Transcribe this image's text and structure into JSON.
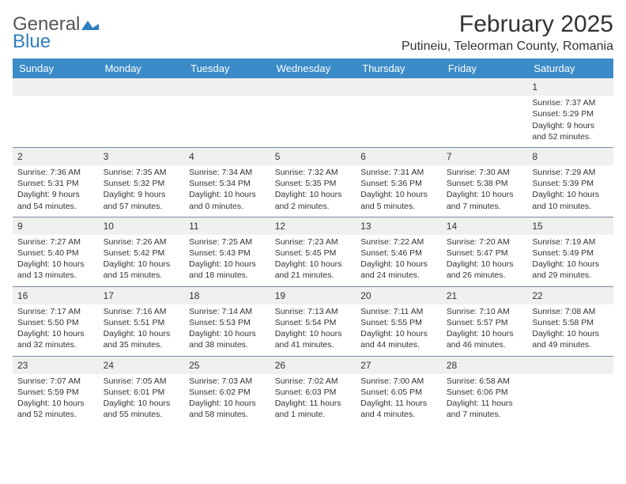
{
  "logo": {
    "word1": "General",
    "word2": "Blue",
    "mark_color": "#2f7fbf"
  },
  "title": "February 2025",
  "location": "Putineiu, Teleorman County, Romania",
  "colors": {
    "header_bg": "#3b8bc9",
    "header_text": "#ffffff",
    "row_divider": "#7a8aa0",
    "shade_bg": "#f0f0f0",
    "text": "#333333"
  },
  "weekdays": [
    "Sunday",
    "Monday",
    "Tuesday",
    "Wednesday",
    "Thursday",
    "Friday",
    "Saturday"
  ],
  "weeks": [
    [
      null,
      null,
      null,
      null,
      null,
      null,
      {
        "n": "1",
        "sr": "Sunrise: 7:37 AM",
        "ss": "Sunset: 5:29 PM",
        "d1": "Daylight: 9 hours",
        "d2": "and 52 minutes."
      }
    ],
    [
      {
        "n": "2",
        "sr": "Sunrise: 7:36 AM",
        "ss": "Sunset: 5:31 PM",
        "d1": "Daylight: 9 hours",
        "d2": "and 54 minutes."
      },
      {
        "n": "3",
        "sr": "Sunrise: 7:35 AM",
        "ss": "Sunset: 5:32 PM",
        "d1": "Daylight: 9 hours",
        "d2": "and 57 minutes."
      },
      {
        "n": "4",
        "sr": "Sunrise: 7:34 AM",
        "ss": "Sunset: 5:34 PM",
        "d1": "Daylight: 10 hours",
        "d2": "and 0 minutes."
      },
      {
        "n": "5",
        "sr": "Sunrise: 7:32 AM",
        "ss": "Sunset: 5:35 PM",
        "d1": "Daylight: 10 hours",
        "d2": "and 2 minutes."
      },
      {
        "n": "6",
        "sr": "Sunrise: 7:31 AM",
        "ss": "Sunset: 5:36 PM",
        "d1": "Daylight: 10 hours",
        "d2": "and 5 minutes."
      },
      {
        "n": "7",
        "sr": "Sunrise: 7:30 AM",
        "ss": "Sunset: 5:38 PM",
        "d1": "Daylight: 10 hours",
        "d2": "and 7 minutes."
      },
      {
        "n": "8",
        "sr": "Sunrise: 7:29 AM",
        "ss": "Sunset: 5:39 PM",
        "d1": "Daylight: 10 hours",
        "d2": "and 10 minutes."
      }
    ],
    [
      {
        "n": "9",
        "sr": "Sunrise: 7:27 AM",
        "ss": "Sunset: 5:40 PM",
        "d1": "Daylight: 10 hours",
        "d2": "and 13 minutes."
      },
      {
        "n": "10",
        "sr": "Sunrise: 7:26 AM",
        "ss": "Sunset: 5:42 PM",
        "d1": "Daylight: 10 hours",
        "d2": "and 15 minutes."
      },
      {
        "n": "11",
        "sr": "Sunrise: 7:25 AM",
        "ss": "Sunset: 5:43 PM",
        "d1": "Daylight: 10 hours",
        "d2": "and 18 minutes."
      },
      {
        "n": "12",
        "sr": "Sunrise: 7:23 AM",
        "ss": "Sunset: 5:45 PM",
        "d1": "Daylight: 10 hours",
        "d2": "and 21 minutes."
      },
      {
        "n": "13",
        "sr": "Sunrise: 7:22 AM",
        "ss": "Sunset: 5:46 PM",
        "d1": "Daylight: 10 hours",
        "d2": "and 24 minutes."
      },
      {
        "n": "14",
        "sr": "Sunrise: 7:20 AM",
        "ss": "Sunset: 5:47 PM",
        "d1": "Daylight: 10 hours",
        "d2": "and 26 minutes."
      },
      {
        "n": "15",
        "sr": "Sunrise: 7:19 AM",
        "ss": "Sunset: 5:49 PM",
        "d1": "Daylight: 10 hours",
        "d2": "and 29 minutes."
      }
    ],
    [
      {
        "n": "16",
        "sr": "Sunrise: 7:17 AM",
        "ss": "Sunset: 5:50 PM",
        "d1": "Daylight: 10 hours",
        "d2": "and 32 minutes."
      },
      {
        "n": "17",
        "sr": "Sunrise: 7:16 AM",
        "ss": "Sunset: 5:51 PM",
        "d1": "Daylight: 10 hours",
        "d2": "and 35 minutes."
      },
      {
        "n": "18",
        "sr": "Sunrise: 7:14 AM",
        "ss": "Sunset: 5:53 PM",
        "d1": "Daylight: 10 hours",
        "d2": "and 38 minutes."
      },
      {
        "n": "19",
        "sr": "Sunrise: 7:13 AM",
        "ss": "Sunset: 5:54 PM",
        "d1": "Daylight: 10 hours",
        "d2": "and 41 minutes."
      },
      {
        "n": "20",
        "sr": "Sunrise: 7:11 AM",
        "ss": "Sunset: 5:55 PM",
        "d1": "Daylight: 10 hours",
        "d2": "and 44 minutes."
      },
      {
        "n": "21",
        "sr": "Sunrise: 7:10 AM",
        "ss": "Sunset: 5:57 PM",
        "d1": "Daylight: 10 hours",
        "d2": "and 46 minutes."
      },
      {
        "n": "22",
        "sr": "Sunrise: 7:08 AM",
        "ss": "Sunset: 5:58 PM",
        "d1": "Daylight: 10 hours",
        "d2": "and 49 minutes."
      }
    ],
    [
      {
        "n": "23",
        "sr": "Sunrise: 7:07 AM",
        "ss": "Sunset: 5:59 PM",
        "d1": "Daylight: 10 hours",
        "d2": "and 52 minutes."
      },
      {
        "n": "24",
        "sr": "Sunrise: 7:05 AM",
        "ss": "Sunset: 6:01 PM",
        "d1": "Daylight: 10 hours",
        "d2": "and 55 minutes."
      },
      {
        "n": "25",
        "sr": "Sunrise: 7:03 AM",
        "ss": "Sunset: 6:02 PM",
        "d1": "Daylight: 10 hours",
        "d2": "and 58 minutes."
      },
      {
        "n": "26",
        "sr": "Sunrise: 7:02 AM",
        "ss": "Sunset: 6:03 PM",
        "d1": "Daylight: 11 hours",
        "d2": "and 1 minute."
      },
      {
        "n": "27",
        "sr": "Sunrise: 7:00 AM",
        "ss": "Sunset: 6:05 PM",
        "d1": "Daylight: 11 hours",
        "d2": "and 4 minutes."
      },
      {
        "n": "28",
        "sr": "Sunrise: 6:58 AM",
        "ss": "Sunset: 6:06 PM",
        "d1": "Daylight: 11 hours",
        "d2": "and 7 minutes."
      },
      null
    ]
  ]
}
